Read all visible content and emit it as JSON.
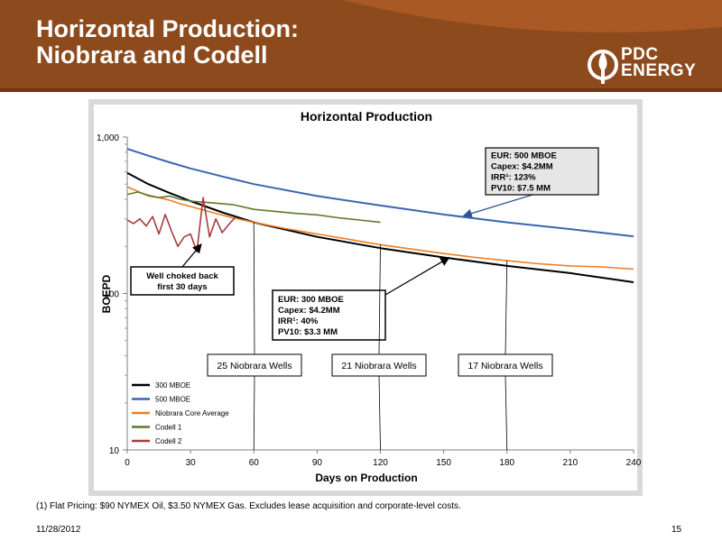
{
  "slide": {
    "title_line1": "Horizontal Production:",
    "title_line2": "Niobrara and Codell",
    "logo_line1": "PDC",
    "logo_line2": "ENERGY",
    "footnote": "(1) Flat Pricing: $90 NYMEX Oil, $3.50 NYMEX Gas. Excludes lease acquisition and corporate-level costs.",
    "date": "11/28/2012",
    "page_number": "15",
    "colors": {
      "header_brown": "#8d4a1d",
      "header_orange": "#c0662a",
      "frame_grey": "#d9d9d9"
    }
  },
  "chart_data": {
    "type": "line",
    "title": "Horizontal Production",
    "xlabel": "Days on Production",
    "ylabel": "BOEPD",
    "y_scale": "log",
    "xlim": [
      0,
      240
    ],
    "ylim": [
      10,
      1000
    ],
    "x_ticks": [
      0,
      30,
      60,
      90,
      120,
      150,
      180,
      210,
      240
    ],
    "x_tick_labels": [
      "0",
      "30",
      "60",
      "90",
      "120",
      "150",
      "180",
      "210",
      "240"
    ],
    "y_ticks": [
      10,
      100,
      1000
    ],
    "y_tick_labels": [
      "10",
      "100",
      "1,000"
    ],
    "grid": false,
    "legend_position": "bottom-left",
    "series": [
      {
        "name": "300 MBOE",
        "color": "#000000",
        "x": [
          0,
          10,
          20,
          30,
          45,
          60,
          90,
          120,
          150,
          180,
          210,
          240
        ],
        "y": [
          590,
          500,
          440,
          390,
          330,
          285,
          230,
          195,
          170,
          150,
          135,
          118
        ]
      },
      {
        "name": "500 MBOE",
        "color": "#3a66b0",
        "x": [
          0,
          10,
          20,
          30,
          45,
          60,
          90,
          120,
          150,
          180,
          210,
          240
        ],
        "y": [
          840,
          760,
          690,
          630,
          560,
          500,
          420,
          365,
          320,
          285,
          258,
          232
        ]
      },
      {
        "name": "Niobrara Core Average",
        "color": "#f07d1e",
        "x": [
          0,
          5,
          10,
          15,
          20,
          25,
          30,
          40,
          50,
          60,
          75,
          90,
          105,
          120,
          135,
          150,
          165,
          180,
          195,
          210,
          225,
          240
        ],
        "y": [
          480,
          450,
          420,
          410,
          395,
          375,
          360,
          330,
          305,
          285,
          260,
          240,
          222,
          205,
          192,
          180,
          170,
          162,
          155,
          150,
          148,
          143
        ]
      },
      {
        "name": "Codell 1",
        "color": "#5b7a2e",
        "x": [
          0,
          5,
          10,
          15,
          20,
          25,
          30,
          40,
          50,
          60,
          70,
          80,
          90,
          100,
          110,
          120
        ],
        "y": [
          430,
          445,
          425,
          410,
          420,
          400,
          390,
          380,
          370,
          345,
          335,
          325,
          318,
          305,
          295,
          285
        ]
      },
      {
        "name": "Codell 2",
        "color": "#a83a3e",
        "x": [
          0,
          3,
          6,
          9,
          12,
          15,
          18,
          21,
          24,
          27,
          30,
          33,
          36,
          39,
          42,
          45,
          48,
          51
        ],
        "y": [
          295,
          280,
          300,
          270,
          310,
          240,
          320,
          250,
          200,
          230,
          240,
          185,
          410,
          230,
          300,
          245,
          275,
          305
        ]
      }
    ],
    "annotations": [
      {
        "text_lines": [
          "EUR: 500 MBOE",
          "Capex: $4.2MM",
          "IRR¹: 123%",
          "PV10: $7.5 MM"
        ]
      },
      {
        "text_lines": [
          "EUR: 300 MBOE",
          "Capex: $4.2MM",
          "IRR¹: 40%",
          "PV10: $3.3 MM"
        ]
      },
      {
        "text_lines": [
          "Well choked back",
          "first 30 days"
        ]
      },
      {
        "text_lines": [
          "25 Niobrara Wells"
        ]
      },
      {
        "text_lines": [
          "21 Niobrara Wells"
        ]
      },
      {
        "text_lines": [
          "17 Niobrara Wells"
        ]
      }
    ]
  }
}
